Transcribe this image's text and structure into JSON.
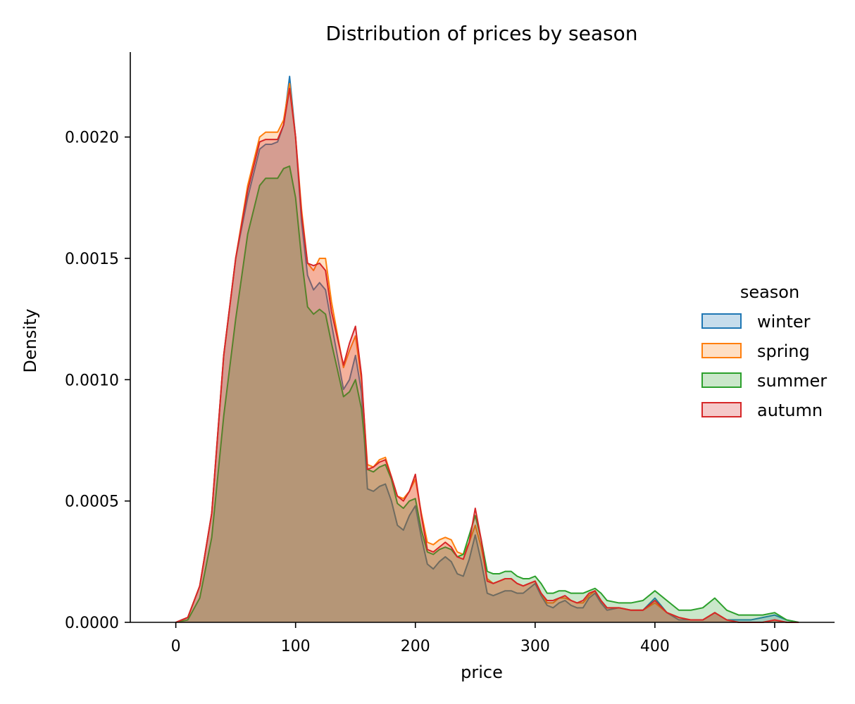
{
  "chart_data": {
    "type": "area",
    "title": "Distribution of prices by season",
    "xlabel": "price",
    "ylabel": "Density",
    "xlim": [
      -38,
      550
    ],
    "ylim": [
      0,
      0.00235
    ],
    "xticks": [
      0,
      100,
      200,
      300,
      400,
      500
    ],
    "yticks": [
      0.0,
      0.0005,
      0.001,
      0.0015,
      0.002
    ],
    "ytick_labels": [
      "0.0000",
      "0.0005",
      "0.0010",
      "0.0015",
      "0.0020"
    ],
    "grid": false,
    "legend": {
      "title": "season",
      "placement": "right"
    },
    "x": [
      0,
      10,
      20,
      30,
      40,
      50,
      60,
      70,
      75,
      80,
      85,
      90,
      95,
      100,
      105,
      110,
      115,
      120,
      125,
      130,
      140,
      145,
      150,
      155,
      160,
      165,
      170,
      175,
      180,
      185,
      190,
      195,
      200,
      205,
      210,
      215,
      220,
      225,
      230,
      235,
      240,
      245,
      250,
      255,
      260,
      265,
      270,
      275,
      280,
      285,
      290,
      295,
      300,
      305,
      310,
      315,
      320,
      325,
      330,
      335,
      340,
      345,
      350,
      355,
      360,
      370,
      380,
      390,
      400,
      410,
      420,
      430,
      440,
      450,
      460,
      470,
      480,
      490,
      500,
      510,
      520
    ],
    "series": [
      {
        "name": "winter",
        "color": "#1f77b4",
        "values": [
          0.0,
          2e-05,
          0.00015,
          0.00045,
          0.0011,
          0.0015,
          0.00175,
          0.00195,
          0.00197,
          0.00197,
          0.00198,
          0.00205,
          0.00225,
          0.002,
          0.00165,
          0.00143,
          0.00137,
          0.0014,
          0.00137,
          0.00123,
          0.00096,
          0.001,
          0.0011,
          0.00095,
          0.00055,
          0.00054,
          0.00056,
          0.00057,
          0.0005,
          0.0004,
          0.00038,
          0.00044,
          0.00048,
          0.00035,
          0.00024,
          0.00022,
          0.00025,
          0.00027,
          0.00025,
          0.0002,
          0.00019,
          0.00026,
          0.00036,
          0.00025,
          0.00012,
          0.00011,
          0.00012,
          0.00013,
          0.00013,
          0.00012,
          0.00012,
          0.00014,
          0.00016,
          0.00011,
          7e-05,
          6e-05,
          8e-05,
          9e-05,
          7e-05,
          6e-05,
          6e-05,
          0.0001,
          0.00012,
          8e-05,
          5e-05,
          6e-05,
          5e-05,
          5e-05,
          0.0001,
          4e-05,
          1e-05,
          1e-05,
          1e-05,
          4e-05,
          1e-05,
          1e-05,
          1e-05,
          2e-05,
          3e-05,
          1e-05,
          0.0
        ]
      },
      {
        "name": "spring",
        "color": "#ff7f0e",
        "values": [
          0.0,
          2e-05,
          0.00015,
          0.00045,
          0.0011,
          0.0015,
          0.0018,
          0.002,
          0.00202,
          0.00202,
          0.00202,
          0.00207,
          0.00222,
          0.002,
          0.0017,
          0.00148,
          0.00145,
          0.0015,
          0.0015,
          0.00132,
          0.00105,
          0.00112,
          0.00118,
          0.001,
          0.00065,
          0.00064,
          0.00067,
          0.00068,
          0.0006,
          0.00052,
          0.00051,
          0.00054,
          0.00059,
          0.00045,
          0.00033,
          0.00032,
          0.00034,
          0.00035,
          0.00034,
          0.00029,
          0.00028,
          0.00033,
          0.0004,
          0.00031,
          0.00018,
          0.00016,
          0.00017,
          0.00018,
          0.00018,
          0.00016,
          0.00015,
          0.00016,
          0.00017,
          0.00012,
          8e-05,
          8e-05,
          0.0001,
          0.0001,
          9e-05,
          8e-05,
          8e-05,
          0.00011,
          0.00013,
          9e-05,
          6e-05,
          6e-05,
          5e-05,
          5e-05,
          8e-05,
          4e-05,
          2e-05,
          1e-05,
          1e-05,
          4e-05,
          1e-05,
          0.0,
          0.0,
          0.0,
          1e-05,
          0.0,
          0.0
        ]
      },
      {
        "name": "summer",
        "color": "#2ca02c",
        "values": [
          0.0,
          1e-05,
          0.0001,
          0.00035,
          0.00085,
          0.00125,
          0.0016,
          0.0018,
          0.00183,
          0.00183,
          0.00183,
          0.00187,
          0.00188,
          0.00175,
          0.0015,
          0.0013,
          0.00127,
          0.00129,
          0.00127,
          0.00115,
          0.00093,
          0.00095,
          0.001,
          0.00088,
          0.00063,
          0.00062,
          0.00064,
          0.00065,
          0.00059,
          0.00049,
          0.00047,
          0.0005,
          0.00051,
          0.00038,
          0.00029,
          0.00028,
          0.0003,
          0.00031,
          0.0003,
          0.00027,
          0.00028,
          0.00036,
          0.00044,
          0.00034,
          0.00021,
          0.0002,
          0.0002,
          0.00021,
          0.00021,
          0.00019,
          0.00018,
          0.00018,
          0.00019,
          0.00016,
          0.00012,
          0.00012,
          0.00013,
          0.00013,
          0.00012,
          0.00012,
          0.00012,
          0.00013,
          0.00014,
          0.00012,
          9e-05,
          8e-05,
          8e-05,
          9e-05,
          0.00013,
          9e-05,
          5e-05,
          5e-05,
          6e-05,
          0.0001,
          5e-05,
          3e-05,
          3e-05,
          3e-05,
          4e-05,
          1e-05,
          0.0
        ]
      },
      {
        "name": "autumn",
        "color": "#d62728",
        "values": [
          0.0,
          2e-05,
          0.00015,
          0.00045,
          0.0011,
          0.0015,
          0.00178,
          0.00198,
          0.00199,
          0.00199,
          0.00199,
          0.00205,
          0.0022,
          0.002,
          0.00168,
          0.00148,
          0.00147,
          0.00148,
          0.00145,
          0.00128,
          0.00106,
          0.00115,
          0.00122,
          0.00102,
          0.00063,
          0.00064,
          0.00066,
          0.00067,
          0.0006,
          0.00052,
          0.0005,
          0.00054,
          0.00061,
          0.00044,
          0.0003,
          0.00029,
          0.00031,
          0.00033,
          0.00031,
          0.00027,
          0.00026,
          0.00033,
          0.00047,
          0.00034,
          0.00017,
          0.00016,
          0.00017,
          0.00018,
          0.00018,
          0.00016,
          0.00015,
          0.00016,
          0.00017,
          0.00012,
          9e-05,
          9e-05,
          0.0001,
          0.00011,
          9e-05,
          8e-05,
          9e-05,
          0.00012,
          0.00013,
          9e-05,
          6e-05,
          6e-05,
          5e-05,
          5e-05,
          9e-05,
          4e-05,
          2e-05,
          1e-05,
          1e-05,
          4e-05,
          1e-05,
          0.0,
          0.0,
          0.0,
          1e-05,
          0.0,
          0.0
        ]
      }
    ]
  }
}
